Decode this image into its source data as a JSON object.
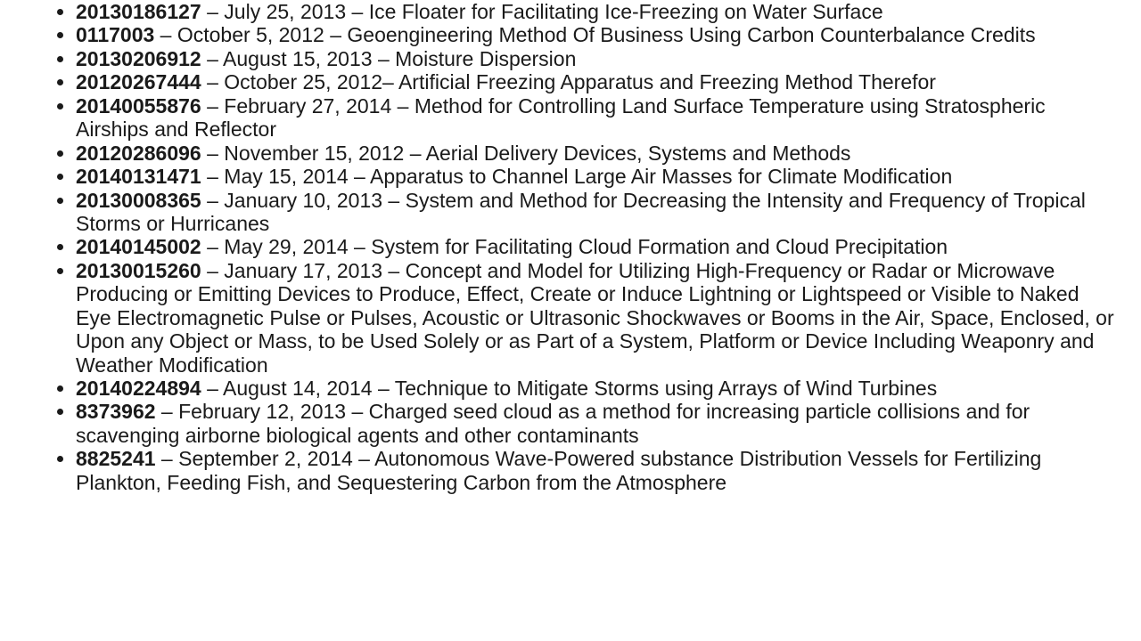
{
  "text_color": "#1a1a1a",
  "background_color": "#ffffff",
  "font_size": 23,
  "entries": [
    {
      "number": "20130186127",
      "date": "July 25, 2013",
      "title": "Ice Floater for Facilitating Ice-Freezing on Water Surface"
    },
    {
      "number": "0117003",
      "date": "October 5, 2012",
      "title": "Geoengineering Method Of Business Using Carbon Counterbalance Credits"
    },
    {
      "number": "20130206912",
      "date": "August 15, 2013",
      "title": "Moisture Dispersion"
    },
    {
      "number": "20120267444",
      "date": "October 25, 2012",
      "title": "Artificial Freezing Apparatus and Freezing Method Therefor",
      "dash_after_date": false
    },
    {
      "number": "20140055876",
      "date": "February 27, 2014",
      "title": "Method for Controlling Land Surface Temperature using Stratospheric Airships and Reflector"
    },
    {
      "number": "20120286096",
      "date": "November 15, 2012",
      "title": "Aerial Delivery Devices, Systems and Methods"
    },
    {
      "number": "20140131471",
      "date": "May 15, 2014",
      "title": "Apparatus to Channel Large Air Masses for Climate Modification"
    },
    {
      "number": "20130008365",
      "date": "January 10, 2013",
      "title": "System and Method for Decreasing the Intensity and Frequency of Tropical Storms or Hurricanes"
    },
    {
      "number": "20140145002",
      "date": "May 29, 2014",
      "title": "System for Facilitating Cloud Formation and Cloud Precipitation"
    },
    {
      "number": "20130015260",
      "date": "January 17, 2013",
      "title": "Concept and Model for Utilizing High-Frequency or Radar or Microwave Producing or Emitting Devices to Produce, Effect, Create or Induce Lightning or Lightspeed or Visible to Naked Eye Electromagnetic Pulse or Pulses, Acoustic or Ultrasonic Shockwaves or Booms in the Air, Space, Enclosed, or Upon any Object or Mass, to be Used Solely or as Part of a System, Platform or Device Including Weaponry and Weather Modification"
    },
    {
      "number": "20140224894",
      "date": "August 14, 2014",
      "title": "Technique to Mitigate Storms using Arrays of Wind Turbines"
    },
    {
      "number": "8373962",
      "date": "February 12, 2013",
      "title": "Charged seed cloud as a method for increasing particle collisions and for scavenging airborne biological agents and other contaminants"
    },
    {
      "number": "8825241",
      "date": "September 2, 2014",
      "title": "Autonomous Wave-Powered substance Distribution Vessels for Fertilizing Plankton, Feeding Fish, and Sequestering Carbon from the Atmosphere"
    }
  ]
}
